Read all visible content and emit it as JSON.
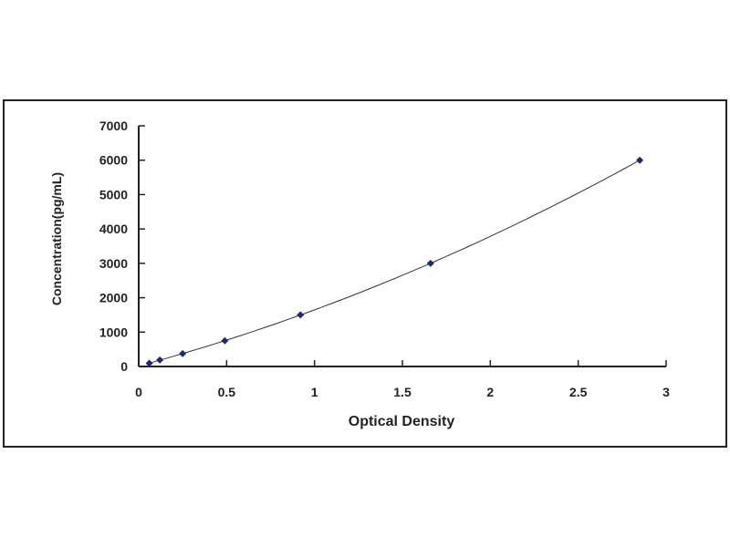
{
  "chart_data": {
    "type": "scatter",
    "title": "",
    "xlabel": "Optical Density",
    "ylabel": "Concentration(pg/mL)",
    "xlim": [
      0,
      3
    ],
    "ylim": [
      0,
      7000
    ],
    "xticks": [
      "0",
      "0.5",
      "1",
      "1.5",
      "2",
      "2.5",
      "3"
    ],
    "yticks": [
      "0",
      "1000",
      "2000",
      "3000",
      "4000",
      "5000",
      "6000",
      "7000"
    ],
    "grid": false,
    "trendline": "smooth curve fit",
    "series": [
      {
        "x": [
          0.06,
          0.12,
          0.25,
          0.49,
          0.92,
          1.66,
          2.85
        ],
        "y": [
          94,
          188,
          375,
          750,
          1500,
          3000,
          6000
        ]
      }
    ],
    "colors": {
      "point": "#1f2a6e",
      "line": "#333333",
      "frame": "#222222"
    }
  }
}
